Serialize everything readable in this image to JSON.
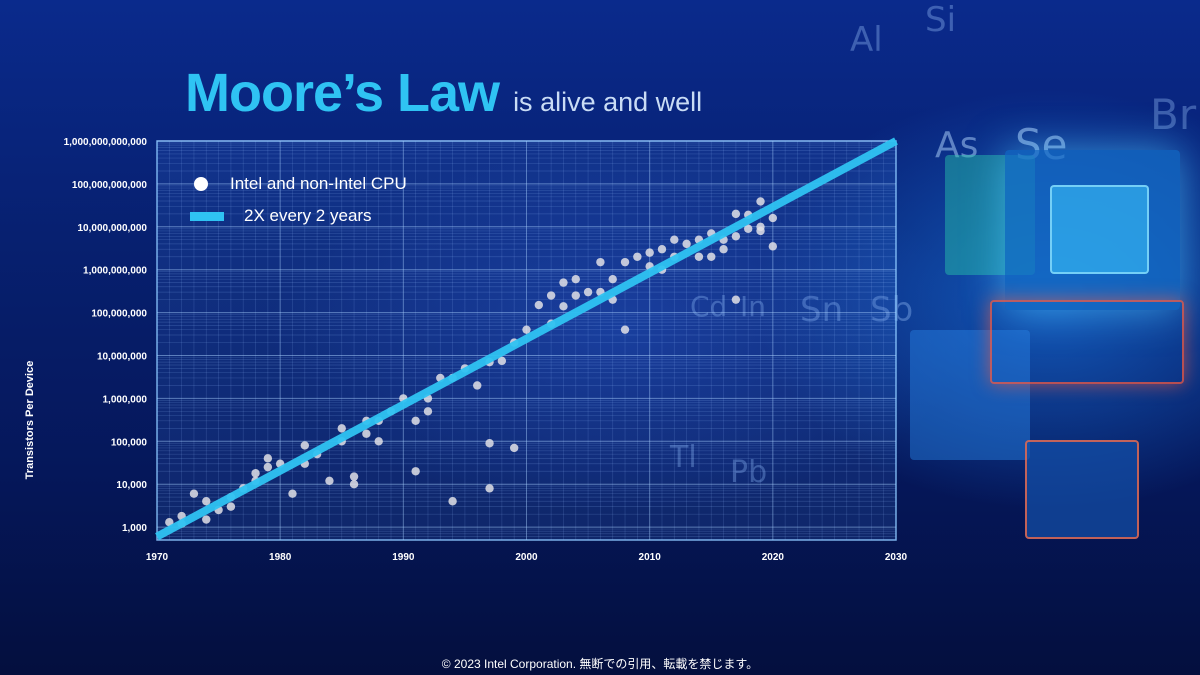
{
  "title": "Moore’s Law",
  "subtitle": "is alive and well",
  "footer": "© 2023 Intel Corporation.  無断での引用、転載を禁じます。",
  "colors": {
    "trend": "#2fc3f3",
    "points": "#ffffff",
    "title": "#2fc3f3"
  },
  "chart_data": {
    "type": "scatter",
    "title": "",
    "xlabel": "",
    "ylabel": "Transistors Per Device",
    "xlim": [
      1970,
      2030
    ],
    "ylim": [
      500,
      1000000000000
    ],
    "yscale": "log",
    "grid": true,
    "legend_position": "top-left",
    "x_ticks": [
      "1970",
      "1980",
      "1990",
      "2000",
      "2010",
      "2020",
      "2030"
    ],
    "y_ticks": [
      "1,000",
      "10,000",
      "100,000",
      "1,000,000",
      "10,000,000",
      "100,000,000",
      "1,000,000,000",
      "10,000,000,000",
      "100,000,000,000",
      "1,000,000,000,000"
    ],
    "series": [
      {
        "name": "Intel and non-Intel CPU",
        "type": "scatter",
        "x": [
          1971,
          1972,
          1972,
          1973,
          1974,
          1974,
          1975,
          1976,
          1976,
          1977,
          1978,
          1978,
          1979,
          1979,
          1980,
          1981,
          1982,
          1982,
          1983,
          1984,
          1985,
          1985,
          1986,
          1986,
          1987,
          1987,
          1988,
          1988,
          1989,
          1990,
          1991,
          1991,
          1992,
          1992,
          1993,
          1994,
          1994,
          1995,
          1996,
          1997,
          1997,
          1997,
          1998,
          1999,
          1999,
          2000,
          2001,
          2002,
          2002,
          2003,
          2003,
          2004,
          2004,
          2005,
          2006,
          2006,
          2007,
          2007,
          2008,
          2008,
          2009,
          2010,
          2010,
          2011,
          2011,
          2012,
          2012,
          2013,
          2014,
          2014,
          2015,
          2015,
          2016,
          2016,
          2017,
          2017,
          2017,
          2018,
          2018,
          2019,
          2019,
          2019,
          2020,
          2020
        ],
        "y": [
          1300,
          1800,
          1200,
          6000,
          4000,
          1500,
          2500,
          5000,
          3000,
          8000,
          18000,
          12000,
          40000,
          25000,
          30000,
          6000,
          30000,
          80000,
          50000,
          12000,
          100000,
          200000,
          10000,
          15000,
          300000,
          150000,
          100000,
          300000,
          500000,
          1000000,
          300000,
          20000,
          1000000,
          500000,
          3000000,
          4000,
          3000000,
          5000000,
          2000000,
          7000000,
          90000,
          8000,
          7500000,
          20000000,
          70000,
          40000000,
          150000000,
          55000000,
          250000000,
          500000000,
          140000000,
          600000000,
          250000000,
          300000000,
          1500000000,
          300000000,
          600000000,
          200000000,
          1500000000,
          40000000,
          2000000000,
          1200000000,
          2500000000,
          1000000000,
          3000000000,
          2000000000,
          5000000000,
          4000000000,
          2000000000,
          5000000000,
          2000000000,
          7000000000,
          5000000000,
          3000000000,
          20000000000,
          6000000000,
          200000000,
          19000000000,
          9000000000,
          39000000000,
          8000000000,
          10000000000,
          16000000000,
          3500000000
        ]
      },
      {
        "name": "2X every 2 years",
        "type": "line",
        "x": [
          1970,
          2030
        ],
        "y": [
          600,
          1000000000000
        ]
      }
    ]
  }
}
